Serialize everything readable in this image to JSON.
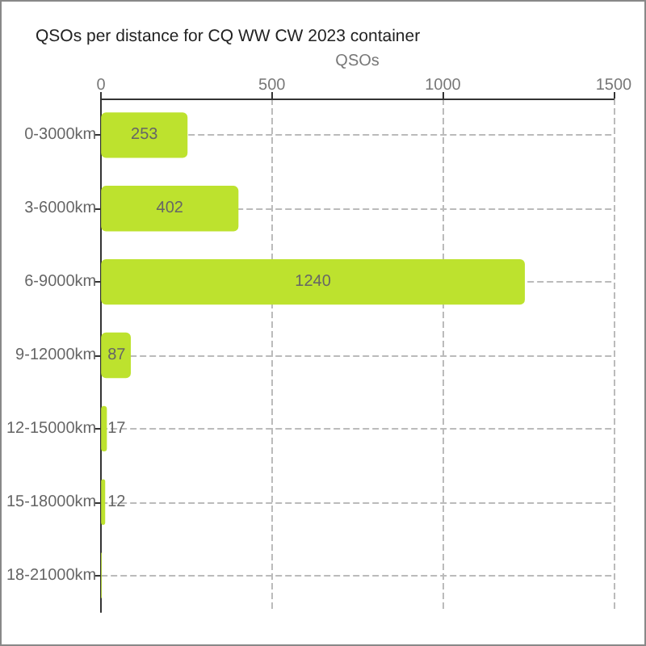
{
  "chart_data": {
    "type": "bar",
    "orientation": "horizontal",
    "title": "QSOs per distance for CQ WW CW 2023 container",
    "xlabel": "QSOs",
    "categories": [
      "0-3000km",
      "3-6000km",
      "6-9000km",
      "9-12000km",
      "12-15000km",
      "15-18000km",
      "18-21000km"
    ],
    "values": [
      253,
      402,
      1240,
      87,
      17,
      12,
      2
    ],
    "value_labels": [
      "253",
      "402",
      "1240",
      "87",
      "17",
      "12",
      null
    ],
    "color": "#bde22e",
    "xlim": [
      0,
      1500
    ],
    "xticks": [
      0,
      500,
      1000,
      1500
    ],
    "grid": true
  }
}
